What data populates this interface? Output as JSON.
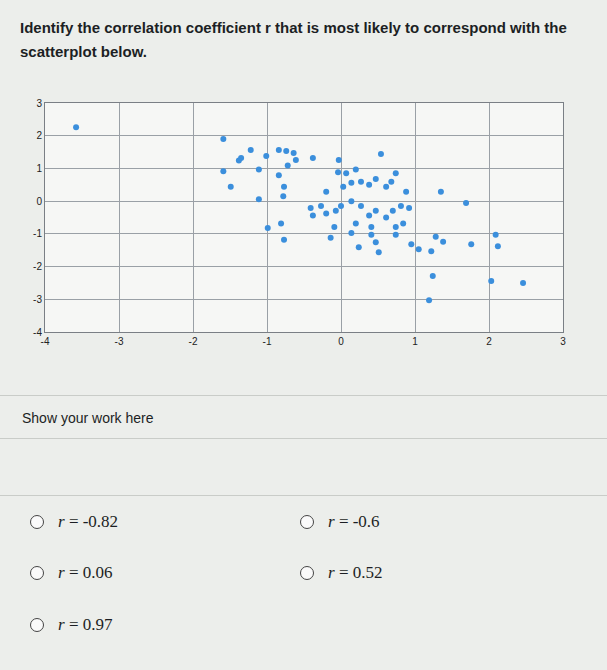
{
  "question": "Identify the correlation coefficient r that is most likely to correspond with the scatterplot below.",
  "chart_data": {
    "type": "scatter",
    "color": "#3b8fdc",
    "grid": true,
    "x": [
      -3.58,
      -1.59,
      -1.22,
      -1.35,
      -1.38,
      -1.01,
      -0.84,
      -0.74,
      -0.64,
      -0.61,
      -0.38,
      -0.03,
      0.2,
      0.54,
      -1.59,
      -1.11,
      -0.84,
      -0.72,
      -1.49,
      -0.77,
      -0.78,
      -1.11,
      -0.04,
      0.07,
      0.14,
      0.03,
      0.27,
      0.38,
      0.47,
      0.61,
      0.74,
      0.68,
      0.88,
      -0.2,
      1.35,
      1.69,
      -0.41,
      -0.27,
      -0.2,
      -0.38,
      -0.07,
      0,
      0.14,
      0.27,
      0.38,
      0.47,
      0.61,
      0.7,
      0.81,
      0.92,
      0.84,
      0.74,
      0.41,
      0.2,
      -0.09,
      -0.81,
      -0.99,
      -0.77,
      -0.14,
      0.14,
      0.41,
      0.47,
      0.24,
      0.51,
      0.74,
      0.95,
      1.05,
      1.22,
      1.28,
      1.38,
      1.76,
      2.09,
      2.12,
      1.24,
      1.19,
      2.03,
      2.46
    ],
    "values": [
      2.26,
      1.9,
      1.56,
      1.32,
      1.24,
      1.38,
      1.56,
      1.53,
      1.47,
      1.26,
      1.32,
      1.26,
      0.97,
      1.44,
      0.91,
      0.97,
      0.79,
      1.09,
      0.44,
      0.44,
      0.15,
      0.06,
      0.88,
      0.85,
      0.56,
      0.44,
      0.59,
      0.5,
      0.68,
      0.44,
      0.85,
      0.59,
      0.29,
      0.29,
      0.29,
      -0.06,
      -0.21,
      -0.15,
      -0.38,
      -0.44,
      -0.29,
      -0.15,
      0,
      -0.15,
      -0.44,
      -0.29,
      -0.5,
      -0.29,
      -0.15,
      -0.21,
      -0.68,
      -0.79,
      -0.79,
      -0.68,
      -0.79,
      -0.68,
      -0.82,
      -1.18,
      -1.12,
      -0.97,
      -1.03,
      -1.26,
      -1.41,
      -1.56,
      -1.03,
      -1.32,
      -1.47,
      -1.53,
      -1.09,
      -1.24,
      -1.32,
      -1.03,
      -1.38,
      -2.29,
      -3.03,
      -2.44,
      -2.5
    ],
    "xlim": [
      -4,
      3
    ],
    "xticks": [
      -4,
      -3,
      -2,
      -1,
      0,
      1,
      2,
      3
    ],
    "ylim": [
      -4,
      3
    ],
    "yticks": [
      -4,
      -3,
      -2,
      -1,
      0,
      1,
      2,
      3
    ]
  },
  "work_prompt": "Show your work here",
  "options": [
    "r = -0.82",
    "r = -0.6",
    "r = 0.06",
    "r = 0.52",
    "r = 0.97"
  ]
}
